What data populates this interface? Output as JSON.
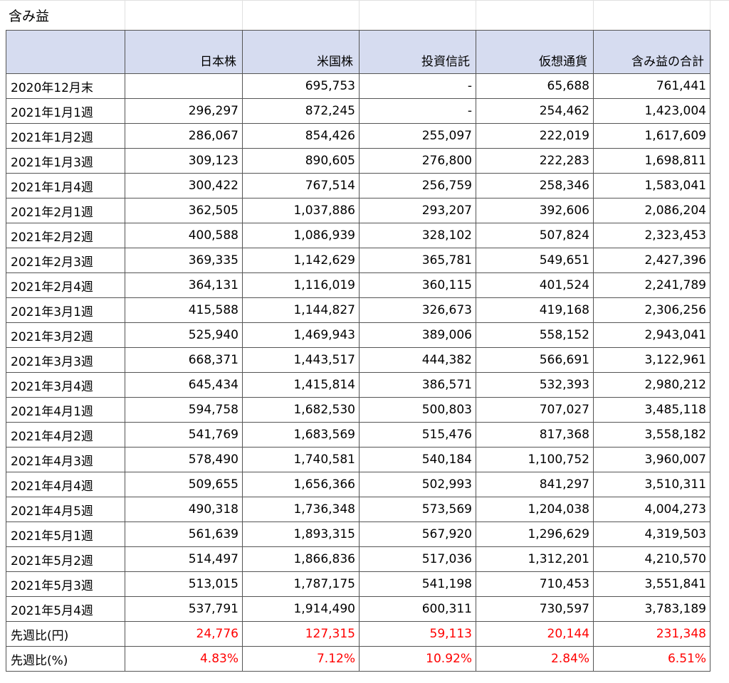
{
  "sheet": {
    "title": "含み益",
    "columns": [
      "",
      "日本株",
      "米国株",
      "投資信託",
      "仮想通貨",
      "含み益の合計"
    ],
    "rows": [
      {
        "label": "2020年12月末",
        "values": [
          "",
          "695,753",
          "-",
          "65,688",
          "761,441"
        ]
      },
      {
        "label": "2021年1月1週",
        "values": [
          "296,297",
          "872,245",
          "-",
          "254,462",
          "1,423,004"
        ]
      },
      {
        "label": "2021年1月2週",
        "values": [
          "286,067",
          "854,426",
          "255,097",
          "222,019",
          "1,617,609"
        ]
      },
      {
        "label": "2021年1月3週",
        "values": [
          "309,123",
          "890,605",
          "276,800",
          "222,283",
          "1,698,811"
        ]
      },
      {
        "label": "2021年1月4週",
        "values": [
          "300,422",
          "767,514",
          "256,759",
          "258,346",
          "1,583,041"
        ]
      },
      {
        "label": "2021年2月1週",
        "values": [
          "362,505",
          "1,037,886",
          "293,207",
          "392,606",
          "2,086,204"
        ]
      },
      {
        "label": "2021年2月2週",
        "values": [
          "400,588",
          "1,086,939",
          "328,102",
          "507,824",
          "2,323,453"
        ]
      },
      {
        "label": "2021年2月3週",
        "values": [
          "369,335",
          "1,142,629",
          "365,781",
          "549,651",
          "2,427,396"
        ]
      },
      {
        "label": "2021年2月4週",
        "values": [
          "364,131",
          "1,116,019",
          "360,115",
          "401,524",
          "2,241,789"
        ]
      },
      {
        "label": "2021年3月1週",
        "values": [
          "415,588",
          "1,144,827",
          "326,673",
          "419,168",
          "2,306,256"
        ]
      },
      {
        "label": "2021年3月2週",
        "values": [
          "525,940",
          "1,469,943",
          "389,006",
          "558,152",
          "2,943,041"
        ]
      },
      {
        "label": "2021年3月3週",
        "values": [
          "668,371",
          "1,443,517",
          "444,382",
          "566,691",
          "3,122,961"
        ]
      },
      {
        "label": "2021年3月4週",
        "values": [
          "645,434",
          "1,415,814",
          "386,571",
          "532,393",
          "2,980,212"
        ]
      },
      {
        "label": "2021年4月1週",
        "values": [
          "594,758",
          "1,682,530",
          "500,803",
          "707,027",
          "3,485,118"
        ]
      },
      {
        "label": "2021年4月2週",
        "values": [
          "541,769",
          "1,683,569",
          "515,476",
          "817,368",
          "3,558,182"
        ]
      },
      {
        "label": "2021年4月3週",
        "values": [
          "578,490",
          "1,740,581",
          "540,184",
          "1,100,752",
          "3,960,007"
        ]
      },
      {
        "label": "2021年4月4週",
        "values": [
          "509,655",
          "1,656,366",
          "502,993",
          "841,297",
          "3,510,311"
        ]
      },
      {
        "label": "2021年4月5週",
        "values": [
          "490,318",
          "1,736,348",
          "573,569",
          "1,204,038",
          "4,004,273"
        ]
      },
      {
        "label": "2021年5月1週",
        "values": [
          "561,639",
          "1,893,315",
          "567,920",
          "1,296,629",
          "4,319,503"
        ]
      },
      {
        "label": "2021年5月2週",
        "values": [
          "514,497",
          "1,866,836",
          "517,036",
          "1,312,201",
          "4,210,570"
        ]
      },
      {
        "label": "2021年5月3週",
        "values": [
          "513,015",
          "1,787,175",
          "541,198",
          "710,453",
          "3,551,841"
        ]
      },
      {
        "label": "2021年5月4週",
        "values": [
          "537,791",
          "1,914,490",
          "600,311",
          "730,597",
          "3,783,189"
        ]
      }
    ],
    "summary_rows": [
      {
        "label": "先週比(円)",
        "values": [
          "24,776",
          "127,315",
          "59,113",
          "20,144",
          "231,348"
        ]
      },
      {
        "label": "先週比(%)",
        "values": [
          "4.83%",
          "7.12%",
          "10.92%",
          "2.84%",
          "6.51%"
        ]
      }
    ],
    "colors": {
      "header_bg": "#d6dcf0",
      "negative_red": "#ff0000",
      "border": "#555555"
    }
  }
}
